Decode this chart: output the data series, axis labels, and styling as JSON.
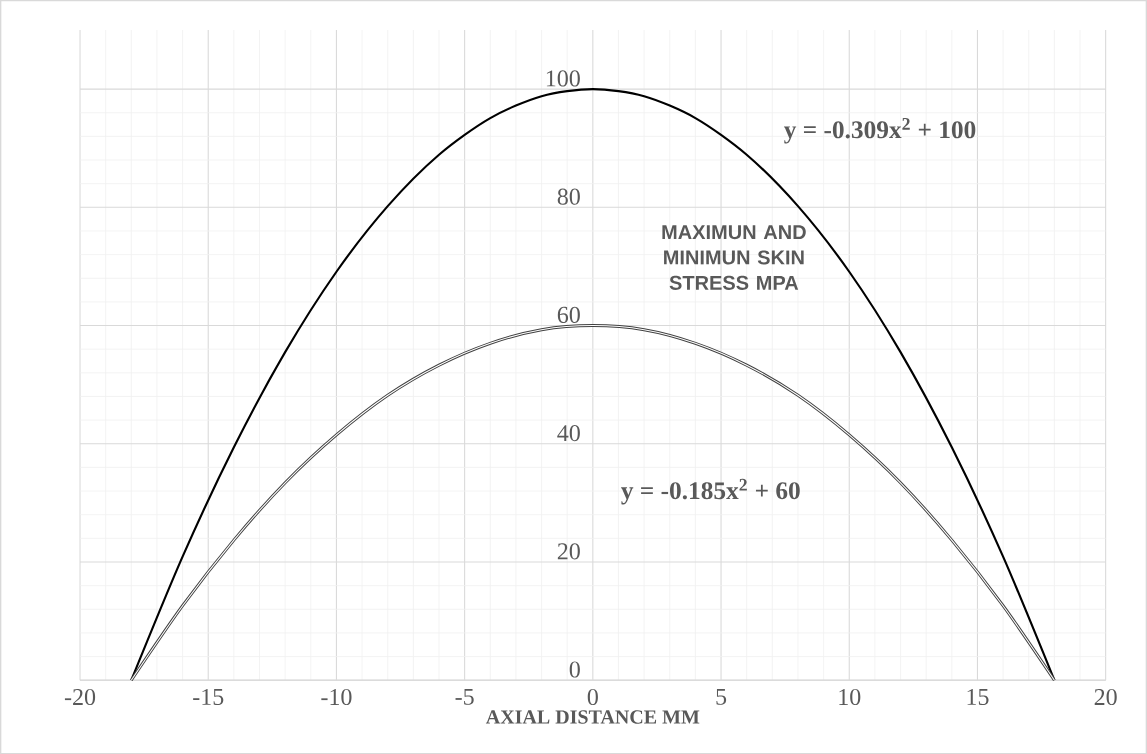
{
  "chart_data": {
    "type": "line",
    "title": "MAXIMUN  AND MINIMUN SKIN STRESS MPA",
    "xlabel": "AXIAL DISTANCE MM",
    "x": [
      -18,
      -16,
      -14,
      -12,
      -10,
      -8,
      -6,
      -4,
      -2,
      0,
      2,
      4,
      6,
      8,
      10,
      12,
      14,
      16,
      18
    ],
    "series": [
      {
        "color": "#000000",
        "values": [
          0,
          20.9,
          39.4,
          55.5,
          69.1,
          80.2,
          88.9,
          95.1,
          98.8,
          100,
          98.8,
          95.1,
          88.9,
          80.2,
          69.1,
          55.5,
          39.4,
          20.9,
          0
        ]
      },
      {
        "color": "#404040",
        "values": [
          0,
          12.6,
          23.7,
          33.4,
          41.5,
          48.2,
          53.3,
          57.0,
          59.3,
          60,
          59.3,
          57.0,
          53.3,
          48.2,
          41.5,
          33.4,
          23.7,
          12.6,
          0
        ]
      }
    ],
    "annotations": [
      "y = -0.309x$^{2}$ + 100",
      "y = -0.185x$^{2}$ + 60"
    ],
    "xlim": [
      -20,
      20
    ],
    "ylim": [
      0,
      110
    ],
    "xticks": [
      -20,
      -15,
      -10,
      -5,
      0,
      5,
      10,
      15,
      20
    ],
    "yticks": [
      0,
      20,
      40,
      60,
      80,
      100
    ],
    "grid": true,
    "marker": "none",
    "line_style": "solid"
  }
}
